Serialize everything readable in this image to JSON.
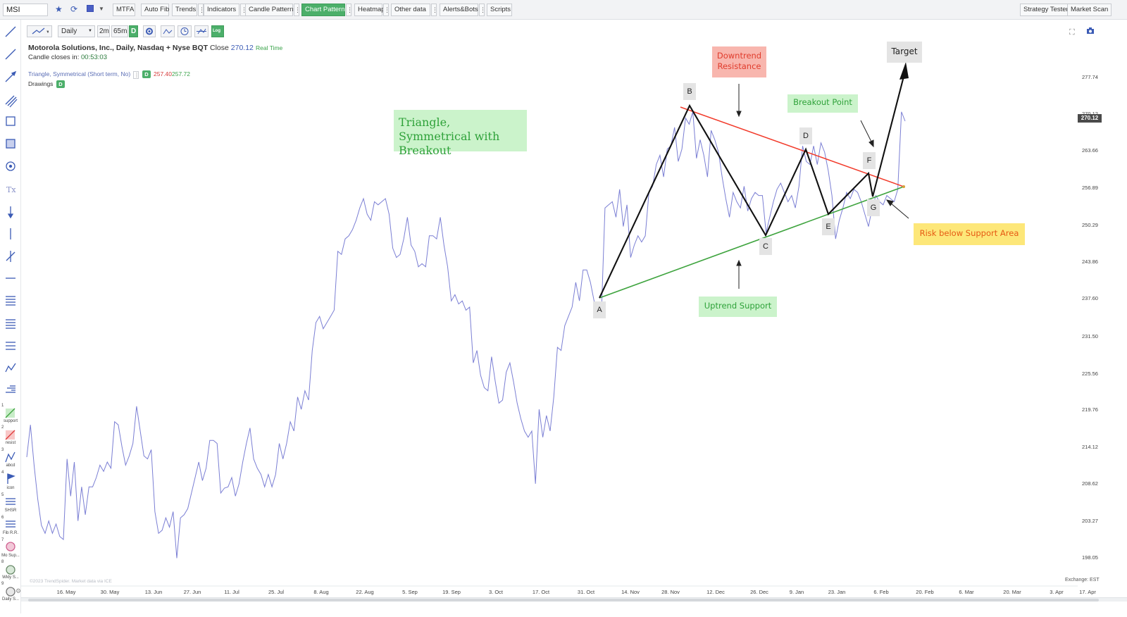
{
  "toolbar": {
    "ticker": "MSI",
    "buttons": [
      {
        "label": "MTFA",
        "left": 0
      },
      {
        "label": "Auto Fib"
      },
      {
        "label": "Trends"
      },
      {
        "label": "Indicators"
      },
      {
        "label": "Candle Patterns"
      },
      {
        "label": "Chart Patterns",
        "active": true
      },
      {
        "label": "Heatmap"
      },
      {
        "label": "Other data"
      },
      {
        "label": "Alerts&Bots"
      },
      {
        "label": "Scripts"
      }
    ],
    "right_buttons": [
      "Strategy Tester",
      "Market Scan"
    ]
  },
  "chart_toolbar": {
    "interval": "Daily",
    "sub_interval_1": "2m",
    "sub_interval_2": "65m",
    "d_badge": "D",
    "log_label": "Log"
  },
  "info": {
    "title": "Motorola Solutions, Inc., Daily, Nasdaq + Nyse BQT",
    "close_label": "Close",
    "close_value": "270.12",
    "realtime": "Real Time",
    "candle_label": "Candle closes in:",
    "candle_value": "00:53:03",
    "indicator": "Triangle, Symmetrical (Short term, No)",
    "indicator_badge": "D",
    "indicator_v1": "257.40",
    "indicator_v2": "257.72",
    "drawings": "Drawings",
    "drawings_badge": "D"
  },
  "left_tools": {
    "labels": [
      "support",
      "resist",
      "abcd",
      "icon",
      "SHSR",
      "Fib R.R.",
      "Mo Sup...",
      "Wkly S...",
      "Daily S..."
    ],
    "numbers": [
      "1",
      "2",
      "3",
      "4",
      "5",
      "6",
      "7",
      "8",
      "9"
    ]
  },
  "annotations": {
    "title": "Triangle, Symmetrical with Breakout",
    "resistance": "Downtrend Resistance",
    "breakout": "Breakout Point",
    "support": "Uptrend Support",
    "risk": "Risk below Support Area",
    "target": "Target",
    "points": [
      "A",
      "B",
      "C",
      "D",
      "E",
      "F",
      "G"
    ]
  },
  "price_tag": "270.12",
  "watermark": "©2023 TrendSpider. Market data via ICE",
  "exchange": "Exchange: EST",
  "colors": {
    "price_line": "#7b7fd4",
    "pattern_line": "#111111",
    "resistance": "#f23b2b",
    "support": "#3fa43f",
    "active_green": "#4caf6a"
  },
  "chart_data": {
    "type": "line",
    "y_ticks": [
      "277.74",
      "270.12",
      "263.66",
      "256.89",
      "250.29",
      "243.86",
      "237.60",
      "231.50",
      "225.56",
      "219.76",
      "214.12",
      "208.62",
      "203.27",
      "198.05"
    ],
    "x_ticks": [
      "16. May",
      "30. May",
      "13. Jun",
      "27. Jun",
      "11. Jul",
      "25. Jul",
      "8. Aug",
      "22. Aug",
      "5. Sep",
      "19. Sep",
      "3. Oct",
      "17. Oct",
      "31. Oct",
      "14. Nov",
      "28. Nov",
      "12. Dec",
      "26. Dec",
      "9. Jan",
      "23. Jan",
      "6. Feb",
      "20. Feb",
      "6. Mar",
      "20. Mar",
      "3. Apr",
      "17. Apr"
    ],
    "ylim": [
      194.0,
      284.0
    ],
    "series": [
      {
        "values": [
          214.8,
          220.0,
          213.5,
          208.0,
          203.8,
          202.5,
          204.5,
          202.5,
          204.0,
          202.0,
          201.5,
          214.5,
          208.5,
          214.0,
          204.5,
          210.0,
          205.5,
          210.0,
          210.0,
          211.5,
          213.5,
          212.5,
          214.0,
          213.0,
          220.5,
          220.0,
          216.5,
          213.5,
          215.0,
          217.0,
          223.0,
          219.0,
          215.0,
          214.5,
          216.0,
          206.0,
          202.5,
          203.0,
          205.0,
          203.5,
          206.0,
          198.5,
          205.0,
          205.5,
          206.5,
          209.0,
          211.5,
          214.0,
          211.0,
          213.0,
          217.5,
          217.5,
          217.0,
          209.0,
          209.8,
          210.0,
          211.5,
          208.5,
          210.5,
          214.0,
          217.0,
          219.5,
          214.5,
          213.0,
          212.0,
          210.0,
          212.0,
          210.0,
          212.0,
          217.0,
          214.5,
          217.0,
          220.5,
          219.0,
          224.5,
          222.5,
          225.5,
          224.0,
          232.0,
          236.5,
          237.5,
          235.5,
          236.5,
          237.5,
          238.5,
          248.0,
          247.5,
          250.0,
          250.5,
          251.5,
          253.0,
          255.0,
          256.5,
          254.0,
          253.0,
          256.0,
          255.5,
          256.0,
          256.5,
          254.0,
          248.5,
          247.0,
          247.5,
          250.0,
          253.5,
          249.0,
          248.0,
          245.5,
          246.0,
          245.5,
          250.5,
          250.5,
          250.0,
          253.5,
          249.0,
          245.5,
          240.0,
          241.0,
          239.5,
          240.0,
          238.5,
          239.0,
          230.0,
          232.0,
          228.0,
          226.0,
          225.5,
          231.0,
          227.0,
          223.5,
          224.0,
          228.5,
          230.0,
          227.0,
          223.5,
          221.0,
          219.0,
          218.0,
          219.0,
          210.5,
          222.5,
          218.0,
          221.5,
          219.0,
          224.5,
          232.5,
          232.0,
          236.0,
          237.5,
          239.0,
          243.0,
          240.0,
          245.0,
          245.0,
          243.0,
          240.0,
          239.0,
          237.5,
          255.0,
          255.5,
          256.0,
          253.5,
          258.0,
          252.0,
          255.5,
          247.0,
          249.0,
          250.5,
          249.5,
          250.5,
          257.5,
          258.5,
          262.0,
          263.5,
          260.0,
          264.5,
          265.0,
          268.0,
          262.5,
          264.5,
          269.5,
          268.5,
          270.5,
          263.0,
          266.0,
          263.5,
          260.0,
          267.5,
          266.0,
          264.0,
          260.0,
          256.5,
          253.5,
          257.5,
          256.0,
          255.0,
          258.5,
          254.5,
          256.5,
          257.5,
          257.0,
          257.0,
          251.0,
          253.5,
          256.0,
          258.0,
          259.0,
          257.5,
          256.0,
          257.0,
          255.0,
          258.5,
          265.0,
          262.5,
          262.0,
          265.0,
          262.0,
          265.5,
          264.0,
          261.0,
          257.0,
          250.0,
          253.0,
          255.0,
          257.5,
          256.5,
          258.0,
          257.5,
          256.0,
          254.0,
          252.0,
          255.0,
          257.0,
          256.0,
          255.5,
          257.0,
          256.5,
          256.0,
          258.0,
          270.5,
          269.0
        ]
      }
    ]
  }
}
